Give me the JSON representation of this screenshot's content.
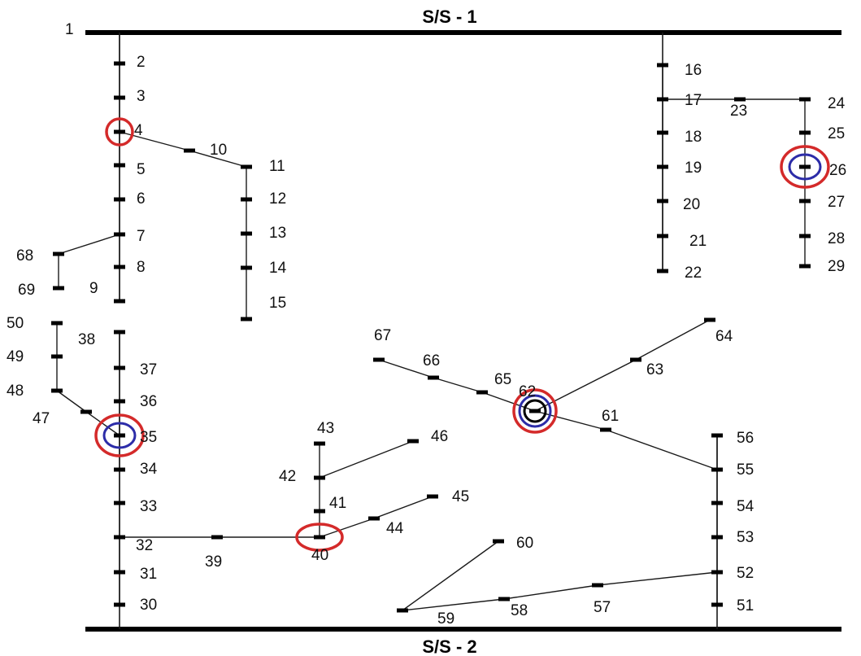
{
  "diagram": {
    "title_top": "S/S - 1",
    "title_bottom": "S/S - 2",
    "colors": {
      "line": "#1a1a1a",
      "busbar": "#000000",
      "marker_red": "#d42a2a",
      "marker_blue": "#2c2ca8",
      "marker_black": "#000000"
    },
    "nodes": [
      "1",
      "2",
      "3",
      "4",
      "5",
      "6",
      "7",
      "8",
      "9",
      "10",
      "11",
      "12",
      "13",
      "14",
      "15",
      "16",
      "17",
      "18",
      "19",
      "20",
      "21",
      "22",
      "23",
      "24",
      "25",
      "26",
      "27",
      "28",
      "29",
      "30",
      "31",
      "32",
      "33",
      "34",
      "35",
      "36",
      "37",
      "38",
      "39",
      "40",
      "41",
      "42",
      "43",
      "44",
      "45",
      "46",
      "47",
      "48",
      "49",
      "50",
      "51",
      "52",
      "53",
      "54",
      "55",
      "56",
      "57",
      "58",
      "59",
      "60",
      "61",
      "62",
      "63",
      "64",
      "65",
      "66",
      "67",
      "68",
      "69"
    ],
    "markers": [
      {
        "node": "4",
        "rings": [
          "red"
        ]
      },
      {
        "node": "26",
        "rings": [
          "red",
          "blue"
        ]
      },
      {
        "node": "35",
        "rings": [
          "red",
          "blue"
        ]
      },
      {
        "node": "40",
        "rings": [
          "red"
        ]
      },
      {
        "node": "62",
        "rings": [
          "red",
          "blue",
          "black"
        ]
      }
    ]
  }
}
